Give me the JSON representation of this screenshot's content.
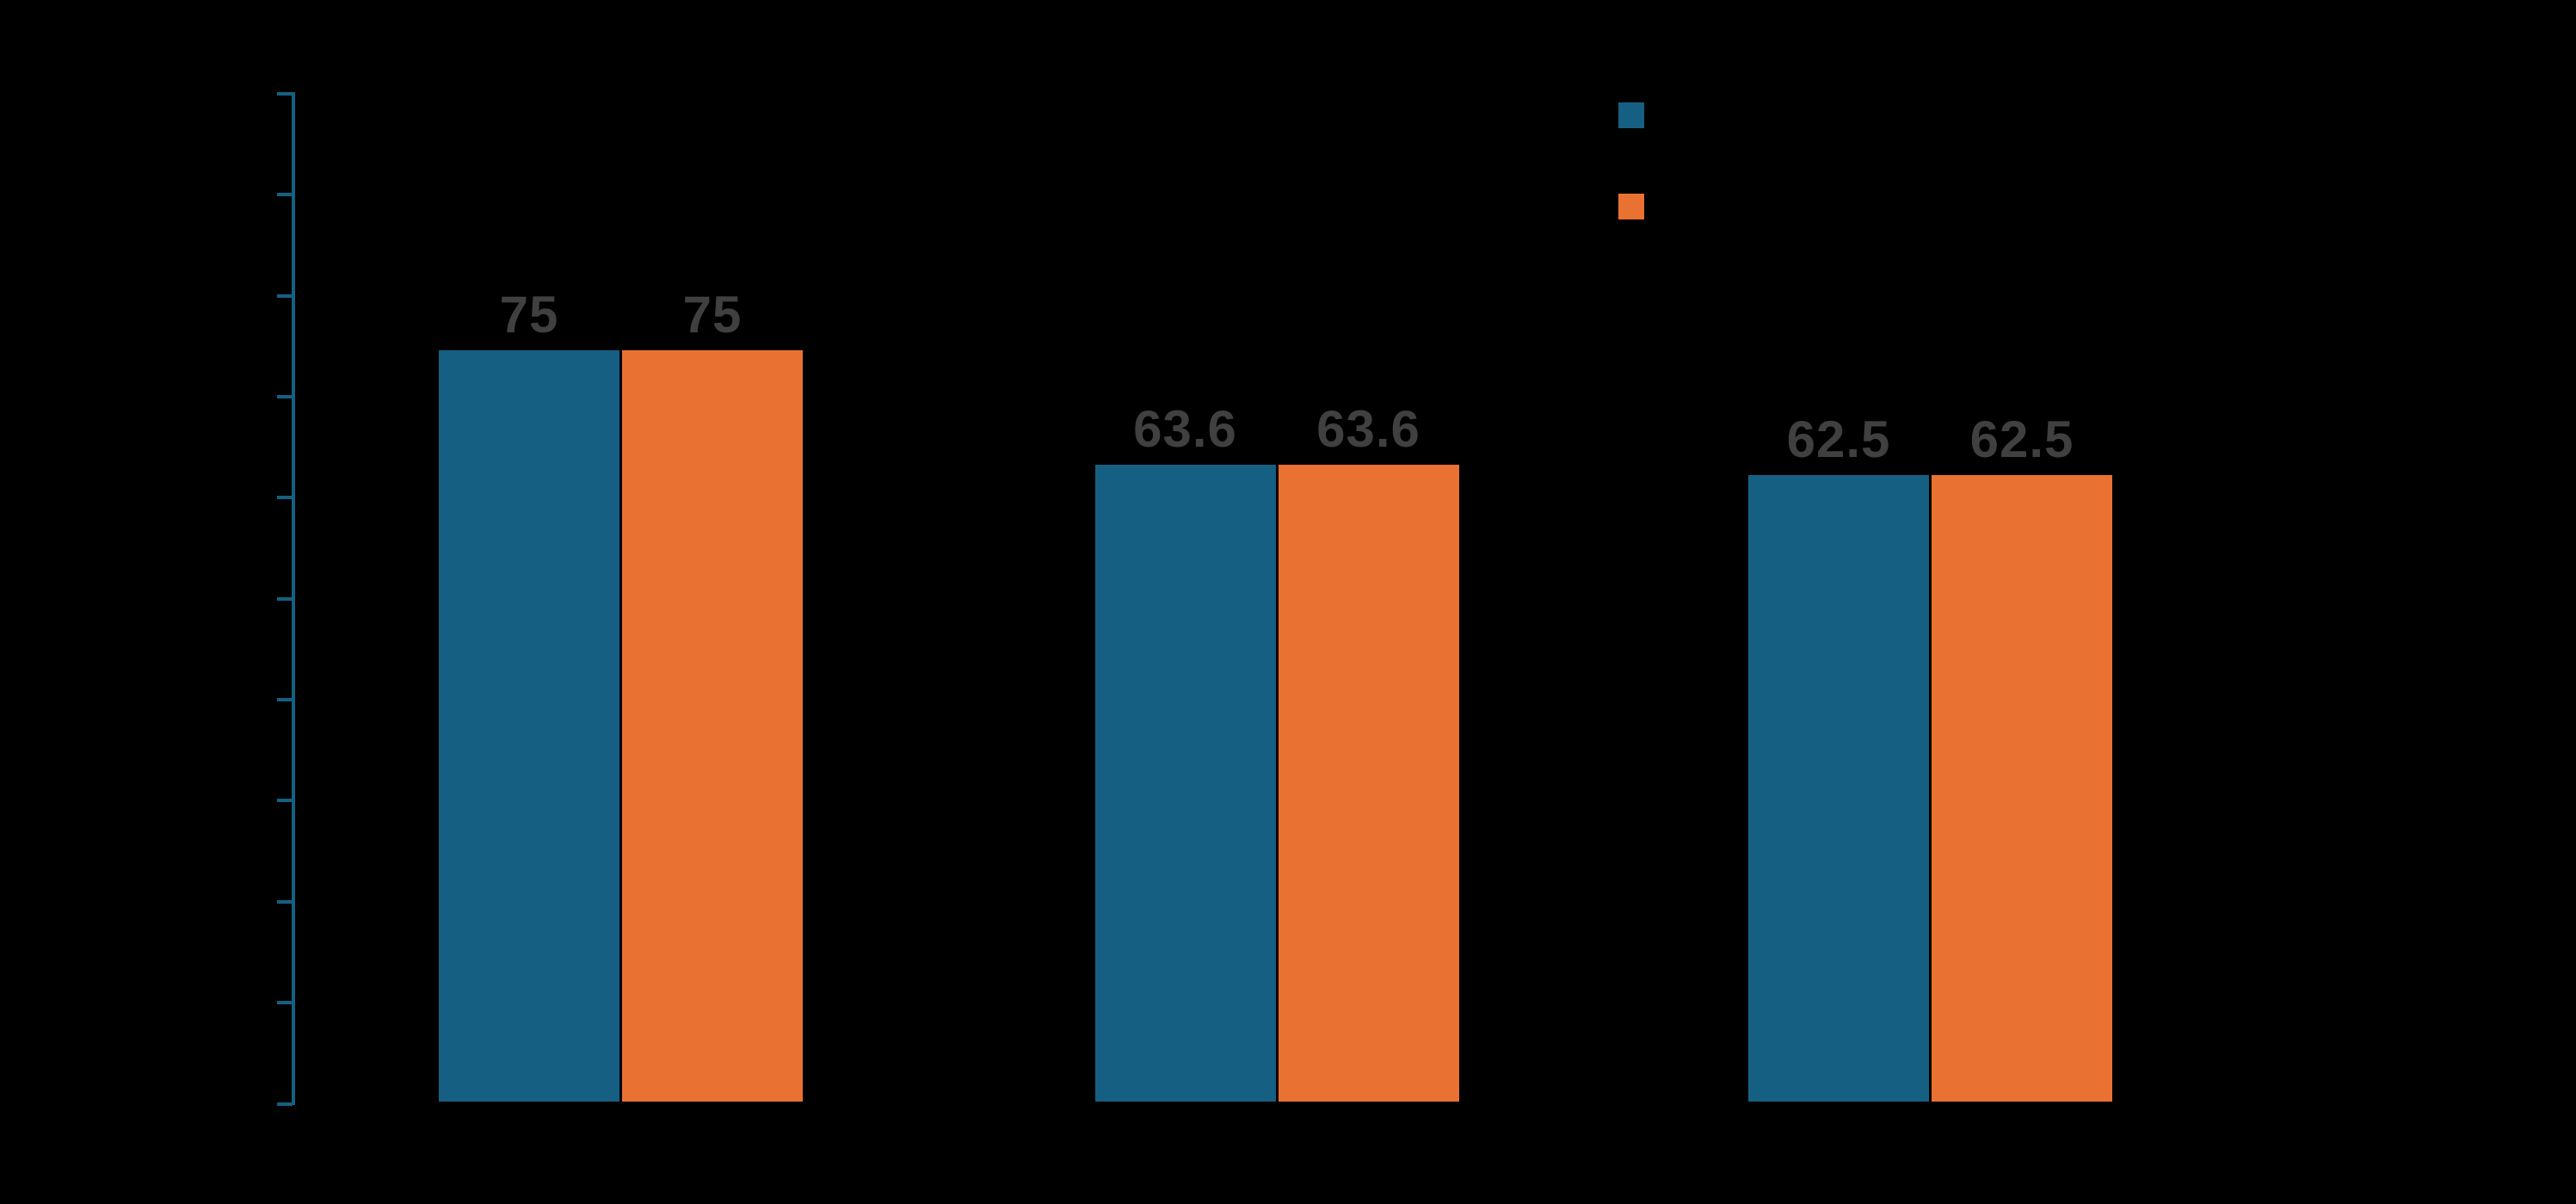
{
  "chart_data": {
    "type": "bar",
    "title": "",
    "categories": [
      "",
      "",
      ""
    ],
    "series": [
      {
        "name": "",
        "color": "#156082",
        "values": [
          75,
          63.6,
          62.5
        ],
        "labels": [
          "75",
          "63.6",
          "62.5"
        ]
      },
      {
        "name": "",
        "color": "#E97132",
        "values": [
          75,
          63.6,
          62.5
        ],
        "labels": [
          "75",
          "63.6",
          "62.5"
        ]
      }
    ],
    "ylim": [
      0,
      100
    ],
    "y_tick_step": 10,
    "y_tick_count": 11,
    "grid": false,
    "legend_position": "top-right",
    "data_label_color": "#404040",
    "axis_color": "#156082",
    "background_color": "#000000"
  }
}
